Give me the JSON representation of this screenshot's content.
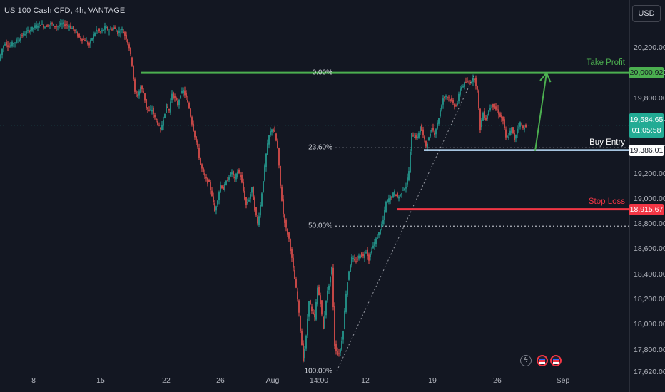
{
  "header": {
    "title": "US 100 Cash CFD, 4h, VANTAGE",
    "currency_button": "USD"
  },
  "y_axis": {
    "ticks": [
      "20,200.00",
      "20,000.00",
      "19,800.00",
      "19,600.00",
      "19,400.00",
      "19,200.00",
      "19,000.00",
      "18,800.00",
      "18,600.00",
      "18,400.00",
      "18,200.00",
      "18,000.00",
      "17,800.00",
      "17,620.00"
    ]
  },
  "x_axis": {
    "ticks": [
      "8",
      "15",
      "22",
      "26",
      "Aug",
      "14:00",
      "12",
      "19",
      "26",
      "Sep"
    ]
  },
  "price_tags": {
    "take_profit": "20,000.92",
    "current_price": "19,584.65",
    "countdown": "01:05:58",
    "buy_entry": "19,386.01",
    "stop_loss": "18,915.67"
  },
  "annotations": {
    "take_profit": "Take Profit",
    "buy_entry": "Buy Entry",
    "stop_loss": "Stop Loss"
  },
  "fib_labels": {
    "f0": "0.00%",
    "f236": "23.60%",
    "f50": "50.00%",
    "f100": "100.00%"
  },
  "colors": {
    "background": "#131722",
    "up": "#26a69a",
    "down": "#ef5350",
    "take_profit": "#4caf50",
    "stop_loss": "#f23645",
    "buy_entry": "#bbdefb"
  },
  "chart_data": {
    "type": "candlestick",
    "title": "US 100 Cash CFD, 4h, VANTAGE",
    "currency": "USD",
    "ylim": [
      17590,
      20390
    ],
    "y_ticks": [
      20200,
      20000,
      19800,
      19600,
      19400,
      19200,
      19000,
      18800,
      18600,
      18400,
      18200,
      18000,
      17800,
      17620
    ],
    "x_ticks": [
      "8",
      "15",
      "22",
      "26",
      "Aug",
      "14:00",
      "12",
      "19",
      "26",
      "Sep"
    ],
    "close_path": [
      [
        0,
        20100
      ],
      [
        4,
        20190
      ],
      [
        8,
        20240
      ],
      [
        14,
        20210
      ],
      [
        20,
        20240
      ],
      [
        26,
        20260
      ],
      [
        32,
        20300
      ],
      [
        40,
        20330
      ],
      [
        48,
        20360
      ],
      [
        56,
        20390
      ],
      [
        64,
        20370
      ],
      [
        72,
        20390
      ],
      [
        80,
        20370
      ],
      [
        88,
        20390
      ],
      [
        96,
        20380
      ],
      [
        104,
        20350
      ],
      [
        112,
        20280
      ],
      [
        120,
        20260
      ],
      [
        126,
        20220
      ],
      [
        130,
        20280
      ],
      [
        136,
        20340
      ],
      [
        142,
        20320
      ],
      [
        148,
        20360
      ],
      [
        154,
        20340
      ],
      [
        160,
        20360
      ],
      [
        166,
        20320
      ],
      [
        172,
        20340
      ],
      [
        178,
        20280
      ],
      [
        182,
        20200
      ],
      [
        186,
        20070
      ],
      [
        190,
        19840
      ],
      [
        194,
        19820
      ],
      [
        198,
        19890
      ],
      [
        202,
        19840
      ],
      [
        206,
        19730
      ],
      [
        210,
        19690
      ],
      [
        214,
        19710
      ],
      [
        218,
        19640
      ],
      [
        222,
        19600
      ],
      [
        226,
        19540
      ],
      [
        230,
        19640
      ],
      [
        234,
        19740
      ],
      [
        238,
        19700
      ],
      [
        242,
        19840
      ],
      [
        246,
        19790
      ],
      [
        250,
        19750
      ],
      [
        254,
        19830
      ],
      [
        258,
        19860
      ],
      [
        262,
        19800
      ],
      [
        266,
        19720
      ],
      [
        270,
        19600
      ],
      [
        274,
        19500
      ],
      [
        278,
        19400
      ],
      [
        282,
        19270
      ],
      [
        286,
        19200
      ],
      [
        290,
        19150
      ],
      [
        294,
        19120
      ],
      [
        298,
        19030
      ],
      [
        302,
        18900
      ],
      [
        306,
        19000
      ],
      [
        310,
        19110
      ],
      [
        314,
        19080
      ],
      [
        318,
        19130
      ],
      [
        322,
        19180
      ],
      [
        326,
        19210
      ],
      [
        330,
        19150
      ],
      [
        334,
        19220
      ],
      [
        338,
        19180
      ],
      [
        342,
        19060
      ],
      [
        346,
        18950
      ],
      [
        350,
        19000
      ],
      [
        354,
        19080
      ],
      [
        358,
        18920
      ],
      [
        362,
        18800
      ],
      [
        366,
        18950
      ],
      [
        370,
        19150
      ],
      [
        374,
        19350
      ],
      [
        378,
        19500
      ],
      [
        382,
        19560
      ],
      [
        386,
        19520
      ],
      [
        390,
        19400
      ],
      [
        394,
        19100
      ],
      [
        398,
        18880
      ],
      [
        402,
        18760
      ],
      [
        406,
        18680
      ],
      [
        410,
        18520
      ],
      [
        414,
        18360
      ],
      [
        418,
        18200
      ],
      [
        422,
        17960
      ],
      [
        426,
        17720
      ],
      [
        430,
        17900
      ],
      [
        434,
        18200
      ],
      [
        438,
        18100
      ],
      [
        442,
        18050
      ],
      [
        446,
        18290
      ],
      [
        450,
        18180
      ],
      [
        454,
        17960
      ],
      [
        458,
        18200
      ],
      [
        462,
        18320
      ],
      [
        466,
        18450
      ],
      [
        470,
        17840
      ],
      [
        474,
        17760
      ],
      [
        478,
        17800
      ],
      [
        482,
        17960
      ],
      [
        486,
        18250
      ],
      [
        490,
        18430
      ],
      [
        494,
        18530
      ],
      [
        498,
        18500
      ],
      [
        502,
        18520
      ],
      [
        506,
        18560
      ],
      [
        510,
        18540
      ],
      [
        514,
        18590
      ],
      [
        518,
        18520
      ],
      [
        522,
        18600
      ],
      [
        526,
        18650
      ],
      [
        530,
        18700
      ],
      [
        534,
        18760
      ],
      [
        538,
        18830
      ],
      [
        542,
        18970
      ],
      [
        546,
        19000
      ],
      [
        550,
        19020
      ],
      [
        554,
        19050
      ],
      [
        558,
        19010
      ],
      [
        562,
        19030
      ],
      [
        566,
        19080
      ],
      [
        570,
        19100
      ],
      [
        574,
        19220
      ],
      [
        578,
        19510
      ],
      [
        582,
        19500
      ],
      [
        586,
        19480
      ],
      [
        590,
        19580
      ],
      [
        594,
        19500
      ],
      [
        598,
        19420
      ],
      [
        602,
        19480
      ],
      [
        606,
        19560
      ],
      [
        610,
        19520
      ],
      [
        614,
        19600
      ],
      [
        618,
        19700
      ],
      [
        622,
        19800
      ],
      [
        626,
        19820
      ],
      [
        630,
        19800
      ],
      [
        634,
        19770
      ],
      [
        638,
        19740
      ],
      [
        642,
        19760
      ],
      [
        646,
        19880
      ],
      [
        650,
        19900
      ],
      [
        654,
        19930
      ],
      [
        658,
        19920
      ],
      [
        662,
        19940
      ],
      [
        666,
        19960
      ],
      [
        670,
        19860
      ],
      [
        674,
        19560
      ],
      [
        678,
        19680
      ],
      [
        682,
        19630
      ],
      [
        686,
        19700
      ],
      [
        690,
        19760
      ],
      [
        694,
        19720
      ],
      [
        698,
        19700
      ],
      [
        702,
        19660
      ],
      [
        706,
        19620
      ],
      [
        710,
        19480
      ],
      [
        714,
        19500
      ],
      [
        718,
        19560
      ],
      [
        722,
        19470
      ],
      [
        726,
        19560
      ],
      [
        730,
        19600
      ],
      [
        734,
        19560
      ],
      [
        738,
        19585
      ]
    ],
    "levels": {
      "take_profit": 20000.92,
      "buy_entry": 19386.01,
      "stop_loss": 18915.67,
      "current": 19584.65
    },
    "fibonacci": {
      "levels": [
        {
          "label": "0.00%",
          "value": 20000
        },
        {
          "label": "23.60%",
          "value": 19405
        },
        {
          "label": "50.00%",
          "value": 18782
        },
        {
          "label": "100.00%",
          "value": 17630
        }
      ]
    },
    "trend_line": [
      [
        472,
        17630
      ],
      [
        666,
        20000
      ]
    ],
    "projection_arrow": [
      [
        750,
        19380
      ],
      [
        766,
        20000
      ]
    ],
    "grid": false
  }
}
